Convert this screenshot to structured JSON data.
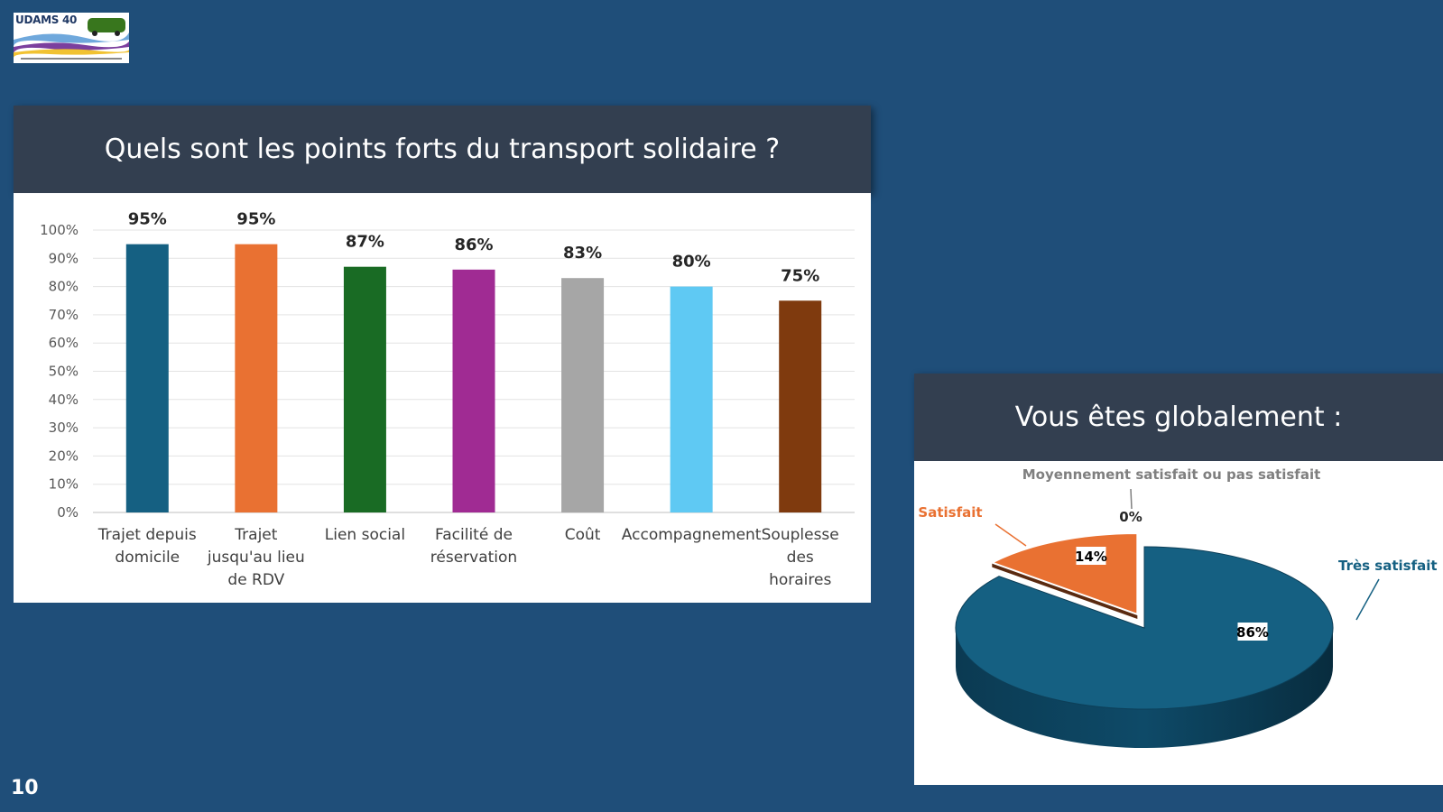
{
  "logo": {
    "text": "UDAMS 40"
  },
  "page_number": "10",
  "colors": {
    "background": "#1f4e79",
    "header": "#333f50"
  },
  "chart_data": [
    {
      "type": "bar",
      "title": "Quels sont les points forts du transport solidaire ?",
      "categories": [
        [
          "Trajet depuis",
          "domicile"
        ],
        [
          "Trajet",
          "jusqu'au lieu",
          "de RDV"
        ],
        [
          "Lien social"
        ],
        [
          "Facilité de",
          "réservation"
        ],
        [
          "Coût"
        ],
        [
          "Accompagnement"
        ],
        [
          "Souplesse",
          "des",
          "horaires"
        ]
      ],
      "values": [
        95,
        95,
        87,
        86,
        83,
        80,
        75
      ],
      "data_labels": [
        "95%",
        "95%",
        "87%",
        "86%",
        "83%",
        "80%",
        "75%"
      ],
      "colors": [
        "#156082",
        "#e97132",
        "#196b24",
        "#a02b93",
        "#a6a6a6",
        "#5fc9f3",
        "#7f3a0e"
      ],
      "y_ticks": [
        "0%",
        "10%",
        "20%",
        "30%",
        "40%",
        "50%",
        "60%",
        "70%",
        "80%",
        "90%",
        "100%"
      ],
      "ylim": [
        0,
        100
      ],
      "grid": true
    },
    {
      "type": "pie",
      "title": "Vous êtes globalement :",
      "slices": [
        {
          "name": "Très satisfait",
          "value": 86,
          "label": "86%",
          "color": "#156082"
        },
        {
          "name": "Satisfait",
          "value": 14,
          "label": "14%",
          "color": "#e97132"
        },
        {
          "name": "Moyennement satisfait ou pas satisfait",
          "value": 0,
          "label": "0%",
          "color": "#808080"
        }
      ]
    }
  ]
}
